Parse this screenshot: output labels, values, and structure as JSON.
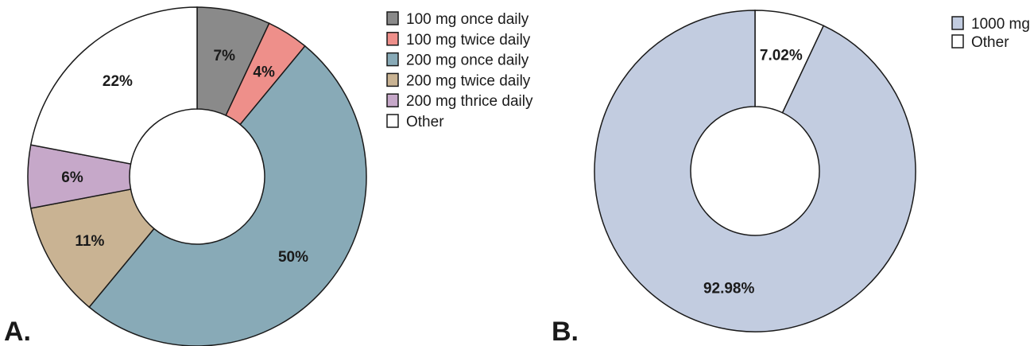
{
  "chart_data": [
    {
      "type": "pie",
      "panel_label": "A.",
      "legend_position": "right",
      "slices": [
        {
          "label": "100 mg once daily",
          "value": 7,
          "display": "7%",
          "color": "#8a8a8a"
        },
        {
          "label": "100 mg twice daily",
          "value": 4,
          "display": "4%",
          "color": "#ee8f8a"
        },
        {
          "label": "200 mg once daily",
          "value": 50,
          "display": "50%",
          "color": "#88aab7"
        },
        {
          "label": "200 mg twice daily",
          "value": 11,
          "display": "11%",
          "color": "#c9b393"
        },
        {
          "label": "200 mg thrice daily",
          "value": 6,
          "display": "6%",
          "color": "#c6a8c9"
        },
        {
          "label": "Other",
          "value": 22,
          "display": "22%",
          "color": "#ffffff"
        }
      ]
    },
    {
      "type": "pie",
      "panel_label": "B.",
      "legend_position": "top-right",
      "slices": [
        {
          "label": "Other",
          "value": 7.02,
          "display": "7.02%",
          "color": "#ffffff",
          "in_legend_order": 1
        },
        {
          "label": "1000 mg",
          "value": 92.98,
          "display": "92.98%",
          "color": "#c2cce0",
          "in_legend_order": 0
        }
      ]
    }
  ]
}
